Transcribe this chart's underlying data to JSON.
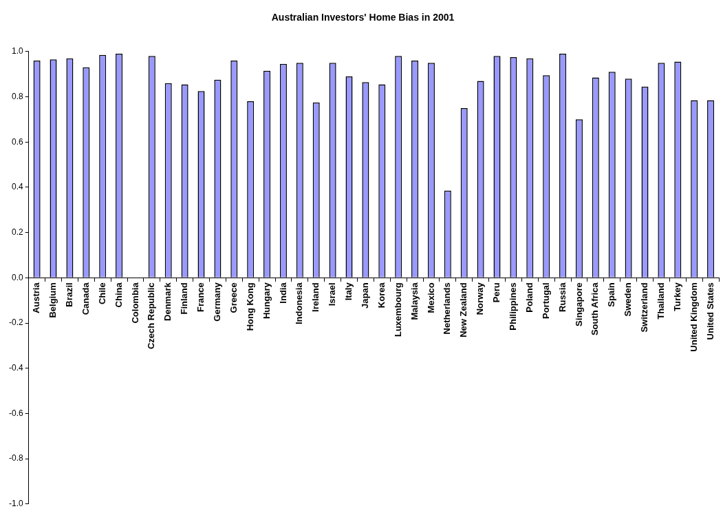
{
  "chart_data": {
    "type": "bar",
    "title": "Australian Investors' Home Bias in 2001",
    "categories": [
      "Austria",
      "Belgium",
      "Brazil",
      "Canada",
      "Chile",
      "China",
      "Colombia",
      "Czech Republic",
      "Denmark",
      "Finland",
      "France",
      "Germany",
      "Greece",
      "Hong Kong",
      "Hungary",
      "India",
      "Indonesia",
      "Ireland",
      "Israel",
      "Italy",
      "Japan",
      "Korea",
      "Luxembourg",
      "Malaysia",
      "Mexico",
      "Netherlands",
      "New Zealand",
      "Norway",
      "Peru",
      "Philippines",
      "Poland",
      "Portugal",
      "Russia",
      "Singapore",
      "South Africa",
      "Spain",
      "Sweden",
      "Switzerland",
      "Thailand",
      "Turkey",
      "United Kingdom",
      "United States"
    ],
    "values": [
      0.96,
      0.965,
      0.97,
      0.93,
      0.985,
      0.99,
      null,
      0.98,
      0.86,
      0.855,
      0.825,
      0.875,
      0.96,
      0.78,
      0.915,
      0.945,
      0.95,
      0.775,
      0.95,
      0.89,
      0.865,
      0.855,
      0.98,
      0.96,
      0.95,
      0.385,
      0.75,
      0.87,
      0.98,
      0.975,
      0.97,
      0.895,
      0.99,
      0.7,
      0.885,
      0.91,
      0.88,
      0.845,
      0.95,
      0.955,
      0.785,
      0.785
    ],
    "color": "#9999ff",
    "ylim": [
      -1,
      1
    ],
    "yticks": [
      {
        "value": -1,
        "label": "-1.0"
      },
      {
        "value": -0.8,
        "label": "-0.8"
      },
      {
        "value": -0.6,
        "label": "-0.6"
      },
      {
        "value": -0.4,
        "label": "-0.4"
      },
      {
        "value": -0.2,
        "label": "-0.2"
      },
      {
        "value": 0,
        "label": "0.0"
      },
      {
        "value": 0.2,
        "label": "0.2"
      },
      {
        "value": 0.4,
        "label": "0.4"
      },
      {
        "value": 0.6,
        "label": "0.6"
      },
      {
        "value": 0.8,
        "label": "0.8"
      },
      {
        "value": 1,
        "label": "1.0"
      }
    ],
    "legend": false
  }
}
